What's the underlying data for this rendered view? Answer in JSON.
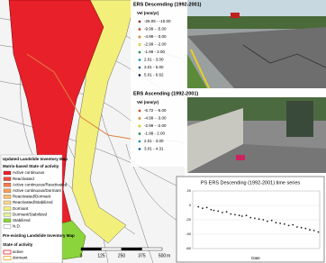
{
  "desc_legend": {
    "title": "ERS Descending (1992-2001)",
    "unit": "Vel (mm/yr)",
    "items": [
      "-26.05 - -10.00",
      "-9.99 - -5.00",
      "-4.99 - -3.00",
      "-2.99 - -2.00",
      "-1.99 - 2.00",
      "2.01 - 3.00",
      "3.01 - 5.00",
      "5.01 - 6.62"
    ],
    "colors": [
      "#c00000",
      "#ff4000",
      "#ff9900",
      "#ffff00",
      "#00b050",
      "#00b0f0",
      "#0070c0",
      "#002060"
    ]
  },
  "asc_legend": {
    "title": "ERS Ascending (1992-2001)",
    "unit": "Vel (mm/yr)",
    "items": [
      "-6.72 - -5.00",
      "-4.99 - -3.00",
      "-2.99 - -2.00",
      "-1.99 - 2.00",
      "2.01 - 3.00",
      "3.01 - 4.31"
    ],
    "colors": [
      "#ff4000",
      "#ff9900",
      "#ffff00",
      "#00b050",
      "#00b0f0",
      "#0070c0"
    ]
  },
  "inventory_legend": {
    "title": "Updated Landslide Inventory Map",
    "subtitle": "Matrix-based State of activity",
    "items": [
      "Active continuous",
      "Reactivated",
      "Active continuous/Reactivated",
      "Active continuous/Dormant",
      "Reactivated/Dormant",
      "Reactivated/Stabilized",
      "Dormant",
      "Dormant/Stabilized",
      "Stabilized",
      "N.D."
    ],
    "colors": [
      "#e8202a",
      "#f04a3a",
      "#f57a4a",
      "#f7a05a",
      "#f9c070",
      "#fbd890",
      "#f5f07a",
      "#e8f0a0",
      "#8cd43c",
      "#ffffff"
    ],
    "pre_title": "Pre-existing Landslide Inventory Map",
    "pre_subtitle": "State of activity",
    "pre_items": [
      "active",
      "dormant"
    ],
    "pre_colors": [
      "#e8202a",
      "#f0a020"
    ]
  },
  "scale": {
    "labels": [
      "0",
      "125",
      "250",
      "375",
      "500"
    ],
    "unit": "m"
  },
  "chart_data": {
    "type": "scatter",
    "title": "PS ERS Descending (1992-2001) time series",
    "xlabel": "Date",
    "x": [
      1992.4,
      1992.7,
      1993.0,
      1993.3,
      1993.5,
      1993.8,
      1994.1,
      1994.4,
      1994.7,
      1995.0,
      1995.3,
      1995.5,
      1995.8,
      1996.1,
      1996.4,
      1996.7,
      1997.0,
      1997.3,
      1997.6,
      1997.9,
      1998.2,
      1998.5,
      1998.8,
      1999.1,
      1999.4,
      1999.7,
      2000.0,
      2000.3,
      2000.6,
      2000.9
    ],
    "values": [
      -2,
      -4,
      -3,
      -6,
      -7,
      -8,
      -10,
      -9,
      -12,
      -13,
      -14,
      -15,
      -14,
      -17,
      -18,
      -19,
      -20,
      -22,
      -21,
      -24,
      -25,
      -26,
      -28,
      -27,
      -30,
      -31,
      -32,
      -34,
      -35,
      -37
    ],
    "color": "#222222",
    "xlim": [
      1992,
      2001
    ],
    "ylim": [
      -60,
      20
    ],
    "yticks": [
      20,
      0,
      -20,
      -40,
      -60
    ],
    "grid": true
  }
}
